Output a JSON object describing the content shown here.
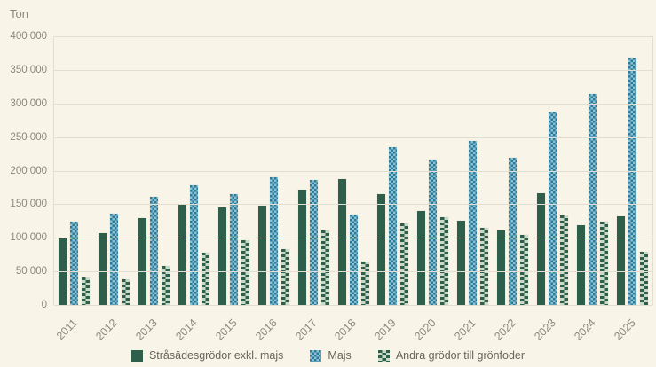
{
  "chart_data": {
    "type": "bar",
    "title": "",
    "ylabel": "Ton",
    "xlabel": "",
    "grid": true,
    "legend_position": "bottom",
    "ylim": [
      0,
      400000
    ],
    "y_ticks": [
      "400 000",
      "350 000",
      "300 000",
      "250 000",
      "200 000",
      "150 000",
      "100 000",
      "50 000",
      "0"
    ],
    "categories": [
      "2011",
      "2012",
      "2013",
      "2014",
      "2015",
      "2016",
      "2017",
      "2018",
      "2019",
      "2020",
      "2021",
      "2022",
      "2023",
      "2024",
      "2025"
    ],
    "series": [
      {
        "name": "Stråsädesgrödor exkl. majs",
        "pattern": "solid",
        "values": [
          100000,
          108000,
          131000,
          150000,
          147000,
          149000,
          173000,
          189000,
          167000,
          141000,
          127000,
          112000,
          168000,
          120000,
          133000
        ]
      },
      {
        "name": "Majs",
        "pattern": "checker",
        "values": [
          126000,
          137000,
          163000,
          179000,
          166000,
          192000,
          188000,
          136000,
          236000,
          218000,
          245000,
          221000,
          289000,
          315000,
          369000
        ]
      },
      {
        "name": "Andra grödor till grönfoder",
        "pattern": "brick",
        "values": [
          42000,
          39000,
          59000,
          79000,
          98000,
          85000,
          112000,
          66000,
          123000,
          132000,
          116000,
          105000,
          135000,
          125000,
          81000
        ]
      }
    ]
  },
  "colors": {
    "background": "#f8f5e8",
    "gridline": "#e2dfd2",
    "axis_text": "#8b897c",
    "legend_text": "#67655b",
    "green": "#2d5f4a",
    "teal": "#2a7b9b",
    "teal_light": "#8cc2d2",
    "brick_light": "#c9dbc8"
  }
}
